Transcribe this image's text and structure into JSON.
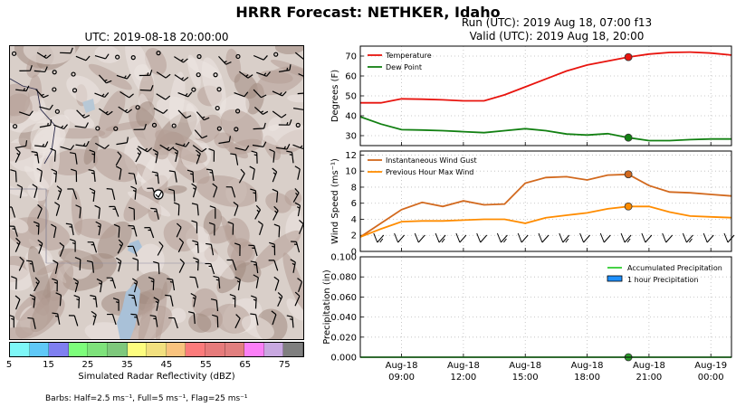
{
  "header": {
    "title": "HRRR Forecast: NETHKER, Idaho",
    "map_title": "UTC: 2019-08-18 20:00:00",
    "run_line": "Run (UTC): 2019 Aug 18, 07:00 f13",
    "valid_line": "Valid (UTC): 2019 Aug 18, 20:00"
  },
  "map": {
    "colorbar": {
      "label": "Simulated Radar Reflectivity (dBZ)",
      "ticks": [
        "5",
        "15",
        "25",
        "35",
        "45",
        "55",
        "65",
        "75"
      ],
      "colors": [
        "#7ef7f7",
        "#5fc8f7",
        "#7f7ff0",
        "#7dfd7b",
        "#7ee27b",
        "#7ec87c",
        "#fdfd7f",
        "#f2e07f",
        "#f9c37e",
        "#fb7b7b",
        "#e67b7b",
        "#e17f7f",
        "#fb7ff7",
        "#c8a8e0",
        "#7f7f7f"
      ]
    },
    "barb_note": "Barbs: Half=2.5 ms⁻¹, Full=5 ms⁻¹, Flag=25 ms⁻¹"
  },
  "chart_data": [
    {
      "type": "line",
      "x": [
        "2019-08-18 07:00",
        "2019-08-18 08:00",
        "2019-08-18 09:00",
        "2019-08-18 10:00",
        "2019-08-18 11:00",
        "2019-08-18 12:00",
        "2019-08-18 13:00",
        "2019-08-18 14:00",
        "2019-08-18 15:00",
        "2019-08-18 16:00",
        "2019-08-18 17:00",
        "2019-08-18 18:00",
        "2019-08-18 19:00",
        "2019-08-18 20:00",
        "2019-08-18 21:00",
        "2019-08-18 22:00",
        "2019-08-18 23:00",
        "2019-08-19 00:00",
        "2019-08-19 01:00"
      ],
      "series": [
        {
          "name": "Temperature",
          "color": "#e8140e",
          "values": [
            46.5,
            46.5,
            48.5,
            48.3,
            48.0,
            47.5,
            47.5,
            50.5,
            54.5,
            58.5,
            62.5,
            65.5,
            67.5,
            69.5,
            71.0,
            71.8,
            72.0,
            71.5,
            70.5
          ]
        },
        {
          "name": "Dew Point",
          "color": "#128012",
          "values": [
            39.5,
            35.8,
            33.0,
            32.8,
            32.5,
            32.0,
            31.5,
            32.5,
            33.5,
            32.5,
            30.8,
            30.3,
            31.0,
            29.0,
            27.5,
            27.5,
            28.0,
            28.3,
            28.3
          ]
        }
      ],
      "highlight_time": "2019-08-18 20:00",
      "ylabel": "Degrees (F)",
      "ylim": [
        25,
        75
      ],
      "yticks": [
        30,
        40,
        50,
        60,
        70
      ],
      "grid": true,
      "legend": "top-left"
    },
    {
      "type": "line",
      "x": [
        "2019-08-18 07:00",
        "2019-08-18 08:00",
        "2019-08-18 09:00",
        "2019-08-18 10:00",
        "2019-08-18 11:00",
        "2019-08-18 12:00",
        "2019-08-18 13:00",
        "2019-08-18 14:00",
        "2019-08-18 15:00",
        "2019-08-18 16:00",
        "2019-08-18 17:00",
        "2019-08-18 18:00",
        "2019-08-18 19:00",
        "2019-08-18 20:00",
        "2019-08-18 21:00",
        "2019-08-18 22:00",
        "2019-08-18 23:00",
        "2019-08-19 00:00",
        "2019-08-19 01:00"
      ],
      "series": [
        {
          "name": "Instantaneous Wind Gust",
          "color": "#d2691e",
          "values": [
            1.8,
            3.5,
            5.2,
            6.1,
            5.6,
            6.3,
            5.8,
            5.9,
            8.5,
            9.2,
            9.3,
            8.9,
            9.5,
            9.6,
            8.2,
            7.4,
            7.3,
            7.1,
            6.9
          ]
        },
        {
          "name": "Previous Hour Max Wind",
          "color": "#ff8c00",
          "values": [
            1.8,
            2.8,
            3.7,
            3.8,
            3.8,
            3.9,
            4.0,
            4.0,
            3.5,
            4.2,
            4.5,
            4.8,
            5.3,
            5.6,
            5.6,
            4.9,
            4.4,
            4.3,
            4.2
          ]
        }
      ],
      "wind_barbs": "hourly, along lower edge",
      "highlight_time": "2019-08-18 20:00",
      "ylabel": "Wind Speed (ms⁻¹)",
      "ylim": [
        0,
        12.5
      ],
      "yticks": [
        0,
        2,
        4,
        6,
        8,
        10,
        12
      ],
      "grid": true,
      "legend": "top-left"
    },
    {
      "type": "area",
      "x": [
        "2019-08-18 07:00",
        "2019-08-18 08:00",
        "2019-08-18 09:00",
        "2019-08-18 10:00",
        "2019-08-18 11:00",
        "2019-08-18 12:00",
        "2019-08-18 13:00",
        "2019-08-18 14:00",
        "2019-08-18 15:00",
        "2019-08-18 16:00",
        "2019-08-18 17:00",
        "2019-08-18 18:00",
        "2019-08-18 19:00",
        "2019-08-18 20:00",
        "2019-08-18 21:00",
        "2019-08-18 22:00",
        "2019-08-18 23:00",
        "2019-08-19 00:00",
        "2019-08-19 01:00"
      ],
      "series": [
        {
          "name": "Accumulated Precipitation",
          "color": "#32cd32",
          "values": [
            0,
            0,
            0,
            0,
            0,
            0,
            0,
            0,
            0,
            0,
            0,
            0,
            0,
            0,
            0,
            0,
            0,
            0,
            0
          ]
        },
        {
          "name": "1 hour Precipitation",
          "color": "#1e90ff",
          "values": [
            0,
            0,
            0,
            0,
            0,
            0,
            0,
            0,
            0,
            0,
            0,
            0,
            0,
            0,
            0,
            0,
            0,
            0,
            0
          ]
        }
      ],
      "highlight_time": "2019-08-18 20:00",
      "ylabel": "Precipitation (in)",
      "ylim": [
        0,
        0.1
      ],
      "yticks": [
        "0.000",
        "0.020",
        "0.040",
        "0.060",
        "0.080",
        "0.100"
      ],
      "xtick_labels": [
        [
          "Aug-18",
          "09:00"
        ],
        [
          "Aug-18",
          "12:00"
        ],
        [
          "Aug-18",
          "15:00"
        ],
        [
          "Aug-18",
          "18:00"
        ],
        [
          "Aug-18",
          "21:00"
        ],
        [
          "Aug-19",
          "00:00"
        ]
      ],
      "xtick_times": [
        "2019-08-18 09:00",
        "2019-08-18 12:00",
        "2019-08-18 15:00",
        "2019-08-18 18:00",
        "2019-08-18 21:00",
        "2019-08-19 00:00"
      ],
      "grid": true,
      "legend": "top-right"
    }
  ]
}
